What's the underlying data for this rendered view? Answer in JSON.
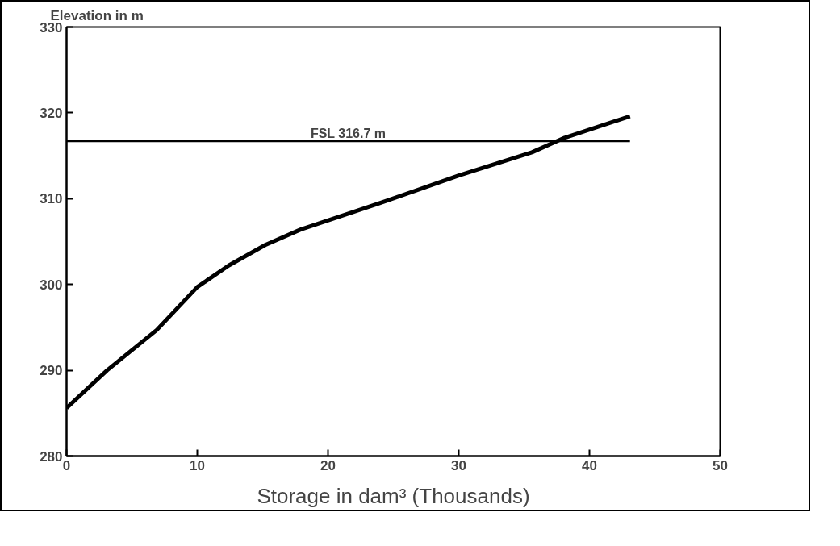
{
  "chart_data": {
    "type": "line",
    "ylabel": "Elevation in m",
    "xlabel": "Storage in dam³ (Thousands)",
    "x": [
      0,
      3.1,
      6.9,
      10,
      12.4,
      15.2,
      17.9,
      24.4,
      30,
      35.6,
      38.1,
      43.1
    ],
    "series": [
      {
        "color": "#000000",
        "values": [
          285.6,
          290,
          294.7,
          299.7,
          302.2,
          304.6,
          306.4,
          309.7,
          312.7,
          315.4,
          317.1,
          319.6
        ]
      }
    ],
    "xlim": [
      0,
      50
    ],
    "xticks": [
      0,
      10,
      20,
      30,
      40,
      50
    ],
    "ylim": [
      280,
      330
    ],
    "yticks": [
      280,
      290,
      300,
      310,
      320,
      330
    ],
    "ref_lines": [
      {
        "axis": "y",
        "value": 316.7,
        "label": "FSL 316.7 m",
        "color": "#000000"
      }
    ],
    "grid": false,
    "marker": "none",
    "line_style": "solid"
  }
}
